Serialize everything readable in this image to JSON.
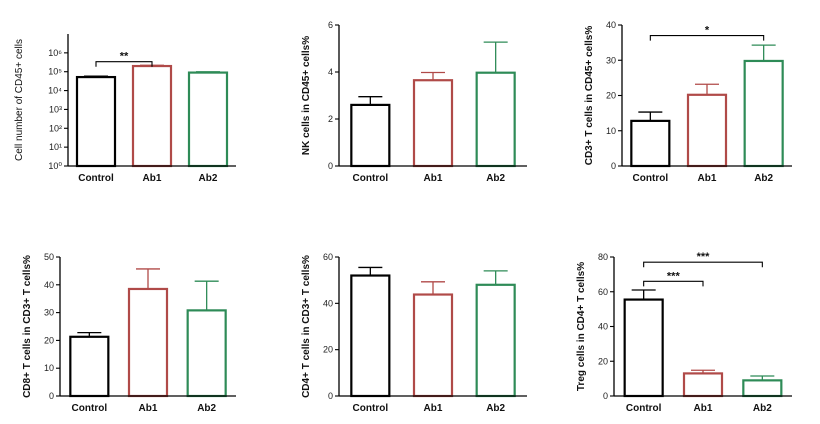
{
  "colors": {
    "Control": "#000000",
    "Ab1": "#b04a48",
    "Ab2": "#2e8b57"
  },
  "chart_data": [
    {
      "type": "bar",
      "ylabel": "Cell number of CD45+ cells",
      "ylabel_bold": false,
      "scale": "log",
      "ylim": [
        1,
        10000000
      ],
      "yticks": [
        1,
        10,
        100,
        1000,
        10000,
        100000,
        1000000
      ],
      "ytick_labels": [
        "10⁰",
        "10¹",
        "10²",
        "10³",
        "10⁴",
        "10⁵",
        "10⁶"
      ],
      "categories": [
        "Control",
        "Ab1",
        "Ab2"
      ],
      "values": [
        52000,
        200000,
        90000
      ],
      "errors": [
        6000,
        20000,
        10000
      ],
      "significance": [
        {
          "from": 0,
          "to": 1,
          "y": 340000,
          "label": "**"
        }
      ]
    },
    {
      "type": "bar",
      "ylabel": "NK cells in CD45+ cells%",
      "ylabel_bold": true,
      "scale": "linear",
      "ylim": [
        0,
        6
      ],
      "yticks": [
        0,
        2,
        4,
        6
      ],
      "ytick_labels": [
        "0",
        "2",
        "4",
        "6"
      ],
      "categories": [
        "Control",
        "Ab1",
        "Ab2"
      ],
      "values": [
        2.6,
        3.65,
        3.97
      ],
      "errors": [
        0.35,
        0.33,
        1.3
      ],
      "significance": []
    },
    {
      "type": "bar",
      "ylabel": "CD3+ T cells in CD45+ cells%",
      "ylabel_bold": true,
      "scale": "linear",
      "ylim": [
        0,
        40
      ],
      "yticks": [
        0,
        10,
        20,
        30,
        40
      ],
      "ytick_labels": [
        "0",
        "10",
        "20",
        "30",
        "40"
      ],
      "categories": [
        "Control",
        "Ab1",
        "Ab2"
      ],
      "values": [
        12.8,
        20.2,
        29.8
      ],
      "errors": [
        2.5,
        3.0,
        4.5
      ],
      "significance": [
        {
          "from": 0,
          "to": 2,
          "y": 37,
          "label": "*"
        }
      ]
    },
    {
      "type": "bar",
      "ylabel": "CD8+ T cells in CD3+ T cells%",
      "ylabel_bold": true,
      "scale": "linear",
      "ylim": [
        0,
        50
      ],
      "yticks": [
        0,
        10,
        20,
        30,
        40,
        50
      ],
      "ytick_labels": [
        "0",
        "10",
        "20",
        "30",
        "40",
        "50"
      ],
      "categories": [
        "Control",
        "Ab1",
        "Ab2"
      ],
      "values": [
        21.3,
        38.5,
        30.8
      ],
      "errors": [
        1.5,
        7.2,
        10.5
      ],
      "significance": []
    },
    {
      "type": "bar",
      "ylabel": "CD4+ T cells in CD3+ T cells%",
      "ylabel_bold": true,
      "scale": "linear",
      "ylim": [
        0,
        60
      ],
      "yticks": [
        0,
        20,
        40,
        60
      ],
      "ytick_labels": [
        "0",
        "20",
        "40",
        "60"
      ],
      "categories": [
        "Control",
        "Ab1",
        "Ab2"
      ],
      "values": [
        52.0,
        43.8,
        48.0
      ],
      "errors": [
        3.5,
        5.5,
        6.0
      ],
      "significance": []
    },
    {
      "type": "bar",
      "ylabel": "Treg cells in CD4+ T cells%",
      "ylabel_bold": true,
      "scale": "linear",
      "ylim": [
        0,
        80
      ],
      "yticks": [
        0,
        20,
        40,
        60,
        80
      ],
      "ytick_labels": [
        "0",
        "20",
        "40",
        "60",
        "80"
      ],
      "categories": [
        "Control",
        "Ab1",
        "Ab2"
      ],
      "values": [
        55.5,
        13.0,
        9.0
      ],
      "errors": [
        5.5,
        1.8,
        2.5
      ],
      "significance": [
        {
          "from": 0,
          "to": 1,
          "y": 66,
          "label": "***"
        },
        {
          "from": 0,
          "to": 2,
          "y": 77,
          "label": "***"
        }
      ]
    }
  ]
}
